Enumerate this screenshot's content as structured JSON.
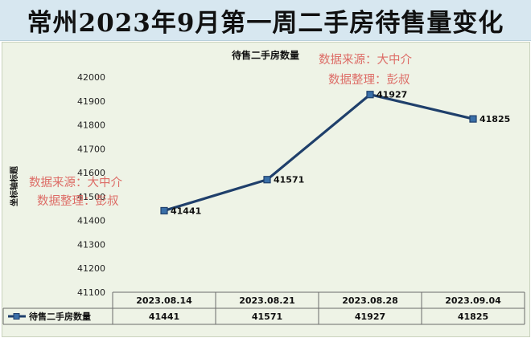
{
  "page_title": "常州2023年9月第一周二手房待售量变化",
  "watermark": [
    "数据来源：大中介",
    "数据整理：彭叔"
  ],
  "colors": {
    "line": "#1f3f6b",
    "marker": "#3a6fa8",
    "plot_bg": "#eef3e6",
    "title_bg": "#d7e7f0",
    "watermark": "#d9534f"
  },
  "chart_data": {
    "type": "line",
    "title": "待售二手房数量",
    "ylabel": "坐标轴标题",
    "xlabel": "",
    "categories": [
      "2023.08.14",
      "2023.08.21",
      "2023.08.28",
      "2023.09.04"
    ],
    "series": [
      {
        "name": "待售二手房数量",
        "values": [
          41441,
          41571,
          41927,
          41825
        ]
      }
    ],
    "ylim": [
      41100,
      42000
    ],
    "yticks": [
      "42000",
      "41900",
      "41800",
      "41700",
      "41600",
      "41500",
      "41400",
      "41300",
      "41200",
      "41100"
    ],
    "data_labels": [
      "41441",
      "41571",
      "41927",
      "41825"
    ],
    "grid": false,
    "data_table": true,
    "legend": "data table"
  }
}
